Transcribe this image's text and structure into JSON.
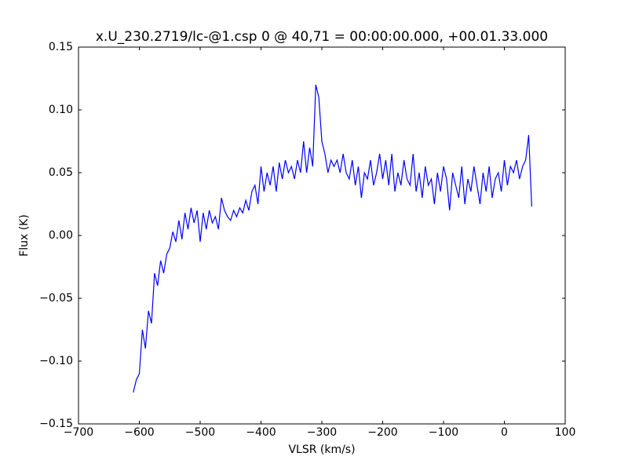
{
  "chart_data": {
    "type": "line",
    "title": "x.U_230.2719/lc-@1.csp 0 @ 40,71 = 00:00:00.000, +00.01.33.000",
    "x_label": "VLSR (km/s)",
    "y_label": "Flux (K)",
    "color": "#0000ff",
    "x": [
      -610,
      -605,
      -600,
      -595,
      -590,
      -585,
      -580,
      -575,
      -570,
      -565,
      -560,
      -555,
      -550,
      -545,
      -540,
      -535,
      -530,
      -525,
      -520,
      -515,
      -510,
      -505,
      -500,
      -495,
      -490,
      -485,
      -480,
      -475,
      -470,
      -465,
      -460,
      -455,
      -450,
      -445,
      -440,
      -435,
      -430,
      -425,
      -420,
      -415,
      -410,
      -405,
      -400,
      -395,
      -390,
      -385,
      -380,
      -375,
      -370,
      -365,
      -360,
      -355,
      -350,
      -345,
      -340,
      -335,
      -330,
      -325,
      -320,
      -315,
      -310,
      -305,
      -300,
      -295,
      -290,
      -285,
      -280,
      -275,
      -270,
      -265,
      -260,
      -255,
      -250,
      -245,
      -240,
      -235,
      -230,
      -225,
      -220,
      -215,
      -210,
      -205,
      -200,
      -195,
      -190,
      -185,
      -180,
      -175,
      -170,
      -165,
      -160,
      -155,
      -150,
      -145,
      -140,
      -135,
      -130,
      -125,
      -120,
      -115,
      -110,
      -105,
      -100,
      -95,
      -90,
      -85,
      -80,
      -75,
      -70,
      -65,
      -60,
      -55,
      -50,
      -45,
      -40,
      -35,
      -30,
      -25,
      -20,
      -15,
      -10,
      -5,
      0,
      5,
      10,
      15,
      20,
      25,
      30,
      35,
      40,
      45
    ],
    "values": [
      -0.125,
      -0.115,
      -0.11,
      -0.075,
      -0.09,
      -0.06,
      -0.07,
      -0.03,
      -0.04,
      -0.02,
      -0.03,
      -0.015,
      -0.01,
      0.003,
      -0.005,
      0.012,
      -0.003,
      0.018,
      0.005,
      0.022,
      0.01,
      0.02,
      -0.005,
      0.018,
      0.005,
      0.02,
      0.01,
      0.015,
      0.005,
      0.03,
      0.02,
      0.015,
      0.012,
      0.02,
      0.015,
      0.022,
      0.018,
      0.028,
      0.02,
      0.035,
      0.04,
      0.025,
      0.055,
      0.035,
      0.05,
      0.04,
      0.055,
      0.035,
      0.058,
      0.045,
      0.06,
      0.05,
      0.055,
      0.045,
      0.06,
      0.05,
      0.075,
      0.05,
      0.07,
      0.055,
      0.12,
      0.11,
      0.075,
      0.065,
      0.05,
      0.06,
      0.055,
      0.06,
      0.05,
      0.065,
      0.05,
      0.045,
      0.06,
      0.04,
      0.055,
      0.03,
      0.05,
      0.045,
      0.06,
      0.04,
      0.05,
      0.065,
      0.045,
      0.06,
      0.04,
      0.065,
      0.035,
      0.05,
      0.04,
      0.06,
      0.045,
      0.04,
      0.065,
      0.035,
      0.05,
      0.03,
      0.055,
      0.04,
      0.045,
      0.025,
      0.05,
      0.035,
      0.055,
      0.045,
      0.02,
      0.05,
      0.04,
      0.03,
      0.055,
      0.025,
      0.045,
      0.035,
      0.055,
      0.04,
      0.025,
      0.05,
      0.035,
      0.055,
      0.03,
      0.045,
      0.05,
      0.035,
      0.06,
      0.04,
      0.055,
      0.05,
      0.06,
      0.045,
      0.055,
      0.06,
      0.08,
      0.023
    ],
    "xlim": [
      -700,
      100
    ],
    "xticks": [
      {
        "value": -700,
        "label": "−700"
      },
      {
        "value": -600,
        "label": "−600"
      },
      {
        "value": -500,
        "label": "−500"
      },
      {
        "value": -400,
        "label": "−400"
      },
      {
        "value": -300,
        "label": "−300"
      },
      {
        "value": -200,
        "label": "−200"
      },
      {
        "value": -100,
        "label": "−100"
      },
      0,
      100
    ],
    "ylim": [
      -0.15,
      0.15
    ],
    "yticks": [
      {
        "value": -0.15,
        "label": "−0.15"
      },
      {
        "value": -0.1,
        "label": "−0.10"
      },
      {
        "value": -0.05,
        "label": "−0.05"
      },
      {
        "value": 0,
        "label": "0.00"
      },
      0.05,
      {
        "value": 0.1,
        "label": "0.10"
      },
      0.15
    ],
    "grid": false
  }
}
